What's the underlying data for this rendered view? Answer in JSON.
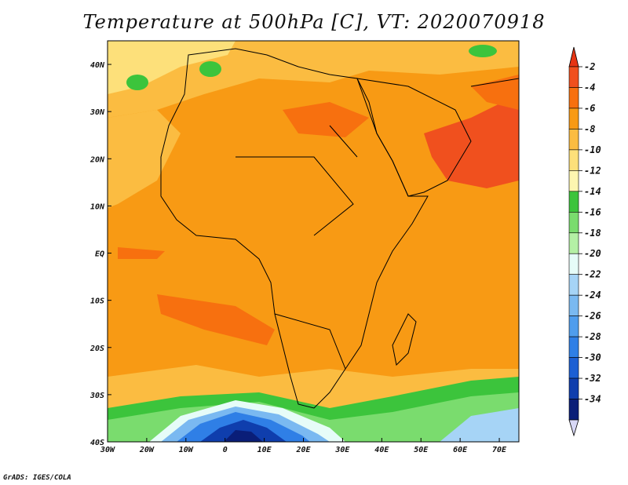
{
  "title": "Temperature at 500hPa [C], VT: 2020070918",
  "credit": "GrADS: IGES/COLA",
  "map": {
    "lon_ticks": [
      "30W",
      "20W",
      "10W",
      "0",
      "10E",
      "20E",
      "30E",
      "40E",
      "50E",
      "60E",
      "70E"
    ],
    "lat_ticks": [
      "40N",
      "30N",
      "20N",
      "10N",
      "EQ",
      "10S",
      "20S",
      "30S",
      "40S"
    ],
    "lon_range": [
      -30,
      75
    ],
    "lat_range": [
      -40,
      45
    ]
  },
  "colorbar": {
    "labels": [
      "-2",
      "-4",
      "-6",
      "-8",
      "-10",
      "-12",
      "-14",
      "-16",
      "-18",
      "-20",
      "-22",
      "-24",
      "-26",
      "-28",
      "-30",
      "-32",
      "-34"
    ],
    "colors": [
      "#f0501e",
      "#f7700f",
      "#f89a14",
      "#fbbc41",
      "#fde07a",
      "#fdf6b0",
      "#3cc43c",
      "#7adc6e",
      "#b4f0a5",
      "#e6fcf8",
      "#a6d4f6",
      "#7ab9f1",
      "#4f9ded",
      "#2f7fe6",
      "#1c5fd3",
      "#0f3ead",
      "#0a1e78"
    ],
    "top_triangle_color": "#e63514",
    "bottom_triangle_color": "#d8d8f6"
  }
}
